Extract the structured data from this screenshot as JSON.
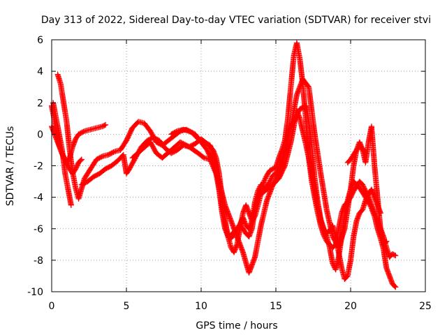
{
  "chart_data": {
    "type": "scatter",
    "title": "Day 313 of 2022, Sidereal Day-to-day VTEC variation (SDTVAR) for receiver stvi",
    "xlabel": "GPS time / hours",
    "ylabel": "SDTVAR / TECUs",
    "xlim": [
      0,
      25
    ],
    "ylim": [
      -10,
      6
    ],
    "x_ticks": [
      0,
      5,
      10,
      15,
      20,
      25
    ],
    "y_ticks": [
      -10,
      -8,
      -6,
      -4,
      -2,
      0,
      2,
      4,
      6
    ],
    "grid": true,
    "marker": "+",
    "color": "#ff0000",
    "series": [
      {
        "x": [
          0.0,
          0.2,
          0.4,
          0.6,
          0.8,
          1.0,
          1.2,
          1.4,
          1.6,
          1.8,
          2.2,
          2.6,
          3.0,
          3.4,
          3.6
        ],
        "y": [
          1.8,
          0.8,
          -0.3,
          -1.0,
          -1.5,
          -1.8,
          -1.5,
          -0.8,
          -0.3,
          0.0,
          0.2,
          0.3,
          0.4,
          0.5,
          0.6
        ]
      },
      {
        "x": [
          0.0,
          0.2,
          0.4,
          0.6,
          0.8,
          1.0,
          1.2,
          1.4,
          1.6,
          1.8,
          2.0
        ],
        "y": [
          0.5,
          0.0,
          -0.5,
          -1.0,
          -1.4,
          -1.8,
          -2.2,
          -2.5,
          -2.2,
          -1.8,
          -1.6
        ]
      },
      {
        "x": [
          0.1,
          0.3,
          0.5,
          0.7,
          0.9,
          1.1,
          1.3
        ],
        "y": [
          2.0,
          1.0,
          0.0,
          -1.0,
          -2.5,
          -3.5,
          -4.5
        ]
      },
      {
        "x": [
          0.4,
          0.6,
          0.8,
          1.0,
          1.2,
          1.4,
          1.6,
          1.8,
          2.2,
          2.6,
          3.0,
          3.4,
          3.8,
          4.2,
          4.6,
          5.0,
          5.4,
          5.8,
          6.2,
          6.6,
          7.0,
          7.4,
          7.8,
          8.2,
          8.6,
          9.0,
          9.4,
          9.8,
          10.2,
          10.6,
          10.8,
          11.0,
          11.2,
          11.4,
          11.6,
          11.8,
          12.0,
          12.2,
          12.4,
          12.6,
          12.8,
          13.0,
          13.2,
          13.4,
          13.6,
          13.8,
          14.0,
          14.2,
          14.4,
          14.6,
          14.8,
          15.0,
          15.2,
          15.4,
          15.6,
          15.8,
          16.0,
          16.2,
          16.4,
          16.6,
          16.8,
          17.0,
          17.2,
          17.4,
          17.6,
          17.8,
          18.0,
          18.2,
          18.4,
          18.6,
          18.8,
          19.0,
          19.2,
          19.4,
          19.6,
          19.8,
          20.0,
          20.2,
          20.4,
          20.6,
          20.8,
          21.0,
          21.2,
          21.4,
          21.6,
          21.8,
          22.0,
          22.2,
          22.4,
          22.6,
          22.8,
          23.0
        ],
        "y": [
          3.8,
          3.2,
          2.0,
          0.8,
          -1.0,
          -2.4,
          -3.4,
          -4.1,
          -2.8,
          -2.2,
          -1.6,
          -1.4,
          -1.3,
          -1.1,
          -1.0,
          -0.4,
          0.4,
          0.8,
          0.7,
          0.2,
          -0.5,
          -0.7,
          -0.4,
          -0.1,
          0.2,
          0.3,
          0.1,
          -0.3,
          -0.5,
          -0.7,
          -1.2,
          -2.0,
          -3.5,
          -5.0,
          -6.0,
          -6.5,
          -6.6,
          -6.4,
          -6.0,
          -5.8,
          -6.0,
          -6.3,
          -6.5,
          -6.0,
          -4.8,
          -4.0,
          -3.5,
          -3.0,
          -2.6,
          -2.3,
          -2.2,
          -2.1,
          -1.5,
          -1.0,
          -0.4,
          1.0,
          3.0,
          5.0,
          5.8,
          4.8,
          3.2,
          1.0,
          -1.5,
          -3.0,
          -4.0,
          -5.0,
          -5.8,
          -6.4,
          -6.8,
          -7.0,
          -7.2,
          -7.0,
          -6.0,
          -5.0,
          -4.5,
          -4.3,
          -4.0,
          -3.6,
          -3.3,
          -3.0,
          -3.2,
          -3.6,
          -4.0,
          -4.5,
          -5.0,
          -5.5,
          -6.0,
          -6.5,
          -7.2,
          -7.8,
          -7.6,
          -7.7
        ]
      },
      {
        "x": [
          2.0,
          2.4,
          2.8,
          3.2,
          3.6,
          4.0,
          4.4,
          4.8,
          5.0,
          5.2,
          5.6,
          6.0,
          6.4,
          6.8,
          7.2,
          7.6,
          8.0,
          8.4,
          8.8,
          9.2,
          9.6,
          10.0,
          10.4,
          10.8,
          11.0,
          11.2,
          11.4,
          11.6,
          11.8,
          12.0,
          12.2,
          12.4,
          12.6,
          12.8,
          13.0,
          13.2,
          13.4,
          13.6,
          13.8,
          14.0,
          14.2,
          14.4,
          14.6,
          14.8,
          15.0,
          15.2,
          15.4,
          15.6,
          15.8,
          16.0,
          16.2,
          16.4,
          16.6,
          16.8,
          17.0,
          17.2,
          17.4,
          17.6,
          17.8,
          18.0,
          18.2,
          18.4,
          18.6,
          18.8,
          19.0,
          19.2,
          19.4,
          19.6,
          19.8,
          20.0,
          20.2,
          20.4,
          20.6,
          20.8,
          21.0,
          21.2,
          21.4,
          21.6,
          21.8,
          22.0,
          22.2,
          22.4,
          22.6,
          22.8,
          23.0
        ],
        "y": [
          -3.2,
          -3.0,
          -2.7,
          -2.5,
          -2.2,
          -2.0,
          -1.7,
          -1.3,
          -2.5,
          -2.2,
          -1.5,
          -0.8,
          -0.4,
          -0.2,
          -0.4,
          -0.9,
          -1.2,
          -1.0,
          -0.7,
          -0.8,
          -0.6,
          -0.3,
          -0.6,
          -1.0,
          -1.5,
          -2.5,
          -4.0,
          -5.5,
          -6.5,
          -6.4,
          -6.2,
          -6.0,
          -5.7,
          -5.3,
          -5.8,
          -6.0,
          -5.5,
          -4.3,
          -3.6,
          -3.2,
          -3.5,
          -3.3,
          -3.0,
          -2.6,
          -2.5,
          -2.1,
          -1.6,
          -0.9,
          -0.1,
          0.5,
          0.8,
          1.2,
          1.6,
          1.7,
          1.8,
          0.8,
          -0.8,
          -2.8,
          -4.3,
          -5.4,
          -6.0,
          -6.5,
          -7.2,
          -8.2,
          -8.6,
          -7.8,
          -6.5,
          -5.2,
          -4.2,
          -3.5,
          -3.0,
          -3.2,
          -3.4,
          -3.7,
          -4.0,
          -4.3,
          -4.7,
          -5.2,
          -6.0,
          -6.6,
          -7.3,
          -8.5,
          -9.0,
          -9.5,
          -9.7
        ]
      },
      {
        "x": [
          5.4,
          6.0,
          6.6,
          7.0,
          7.4,
          8.0,
          8.6,
          9.2,
          9.8,
          10.2,
          10.6,
          11.0,
          11.2,
          11.4,
          11.6,
          11.8,
          12.0,
          12.2,
          12.4,
          12.6,
          12.8,
          13.0,
          13.2,
          13.4,
          13.6,
          13.8,
          14.0,
          14.4,
          14.8,
          15.2,
          15.6,
          16.0,
          16.2,
          16.4,
          16.6,
          16.8,
          17.0,
          17.2,
          17.4,
          17.6,
          17.8,
          18.0,
          18.2,
          18.4,
          18.6,
          18.8,
          19.0,
          19.2,
          19.4,
          19.6,
          19.8,
          20.0,
          20.2,
          20.4,
          20.6,
          20.8,
          21.0,
          21.2,
          21.4,
          21.6,
          21.8,
          22.0
        ],
        "y": [
          -1.5,
          -1.0,
          -0.5,
          -1.2,
          -1.5,
          -1.0,
          -0.5,
          -0.8,
          -1.2,
          -1.5,
          -1.6,
          -2.5,
          -3.5,
          -4.5,
          -5.5,
          -6.5,
          -7.2,
          -7.5,
          -7.0,
          -6.0,
          -5.0,
          -4.5,
          -5.0,
          -5.5,
          -5.2,
          -4.5,
          -3.8,
          -3.5,
          -3.2,
          -2.8,
          -2.0,
          -0.5,
          0.5,
          1.5,
          1.0,
          0.2,
          -0.6,
          -1.5,
          -2.5,
          -3.5,
          -4.5,
          -5.5,
          -6.0,
          -6.3,
          -6.1,
          -5.8,
          -6.5,
          -7.5,
          -8.5,
          -9.2,
          -9.0,
          -8.0,
          -6.5,
          -5.5,
          -5.0,
          -4.8,
          -4.2,
          -3.8,
          -3.5,
          -4.0,
          -4.5,
          -5.0
        ]
      },
      {
        "x": [
          8.0,
          8.4,
          8.8,
          9.2,
          9.6,
          10.0,
          10.4,
          10.8,
          11.2,
          11.6,
          12.0,
          12.4,
          12.8,
          13.2,
          13.6,
          14.0,
          14.4,
          14.8,
          15.2,
          15.6,
          16.0,
          16.4,
          16.8,
          17.2,
          17.6,
          18.0,
          18.4,
          18.8,
          19.2,
          19.6,
          20.0,
          20.2,
          20.4,
          20.6,
          20.8,
          21.0,
          21.2,
          21.4,
          21.6,
          21.8,
          22.0,
          22.2,
          22.4
        ],
        "y": [
          0.0,
          0.2,
          0.3,
          0.2,
          0.0,
          -0.5,
          -1.0,
          -1.8,
          -3.0,
          -4.5,
          -5.5,
          -6.5,
          -7.5,
          -8.8,
          -7.8,
          -5.8,
          -4.2,
          -3.2,
          -2.5,
          -1.2,
          0.5,
          2.5,
          3.5,
          3.0,
          0.0,
          -2.5,
          -4.8,
          -6.5,
          -7.2,
          -6.0,
          -3.5,
          -2.0,
          -1.0,
          -0.5,
          -1.0,
          -1.8,
          -0.5,
          0.5,
          -2.0,
          -4.0,
          -6.0,
          -7.0,
          -6.8
        ]
      },
      {
        "x": [
          19.8,
          20.0,
          20.2,
          20.4,
          20.6,
          20.8,
          21.0
        ],
        "y": [
          -1.8,
          -1.6,
          -1.3,
          -1.0,
          -0.8,
          -0.9,
          -1.2
        ]
      }
    ]
  }
}
